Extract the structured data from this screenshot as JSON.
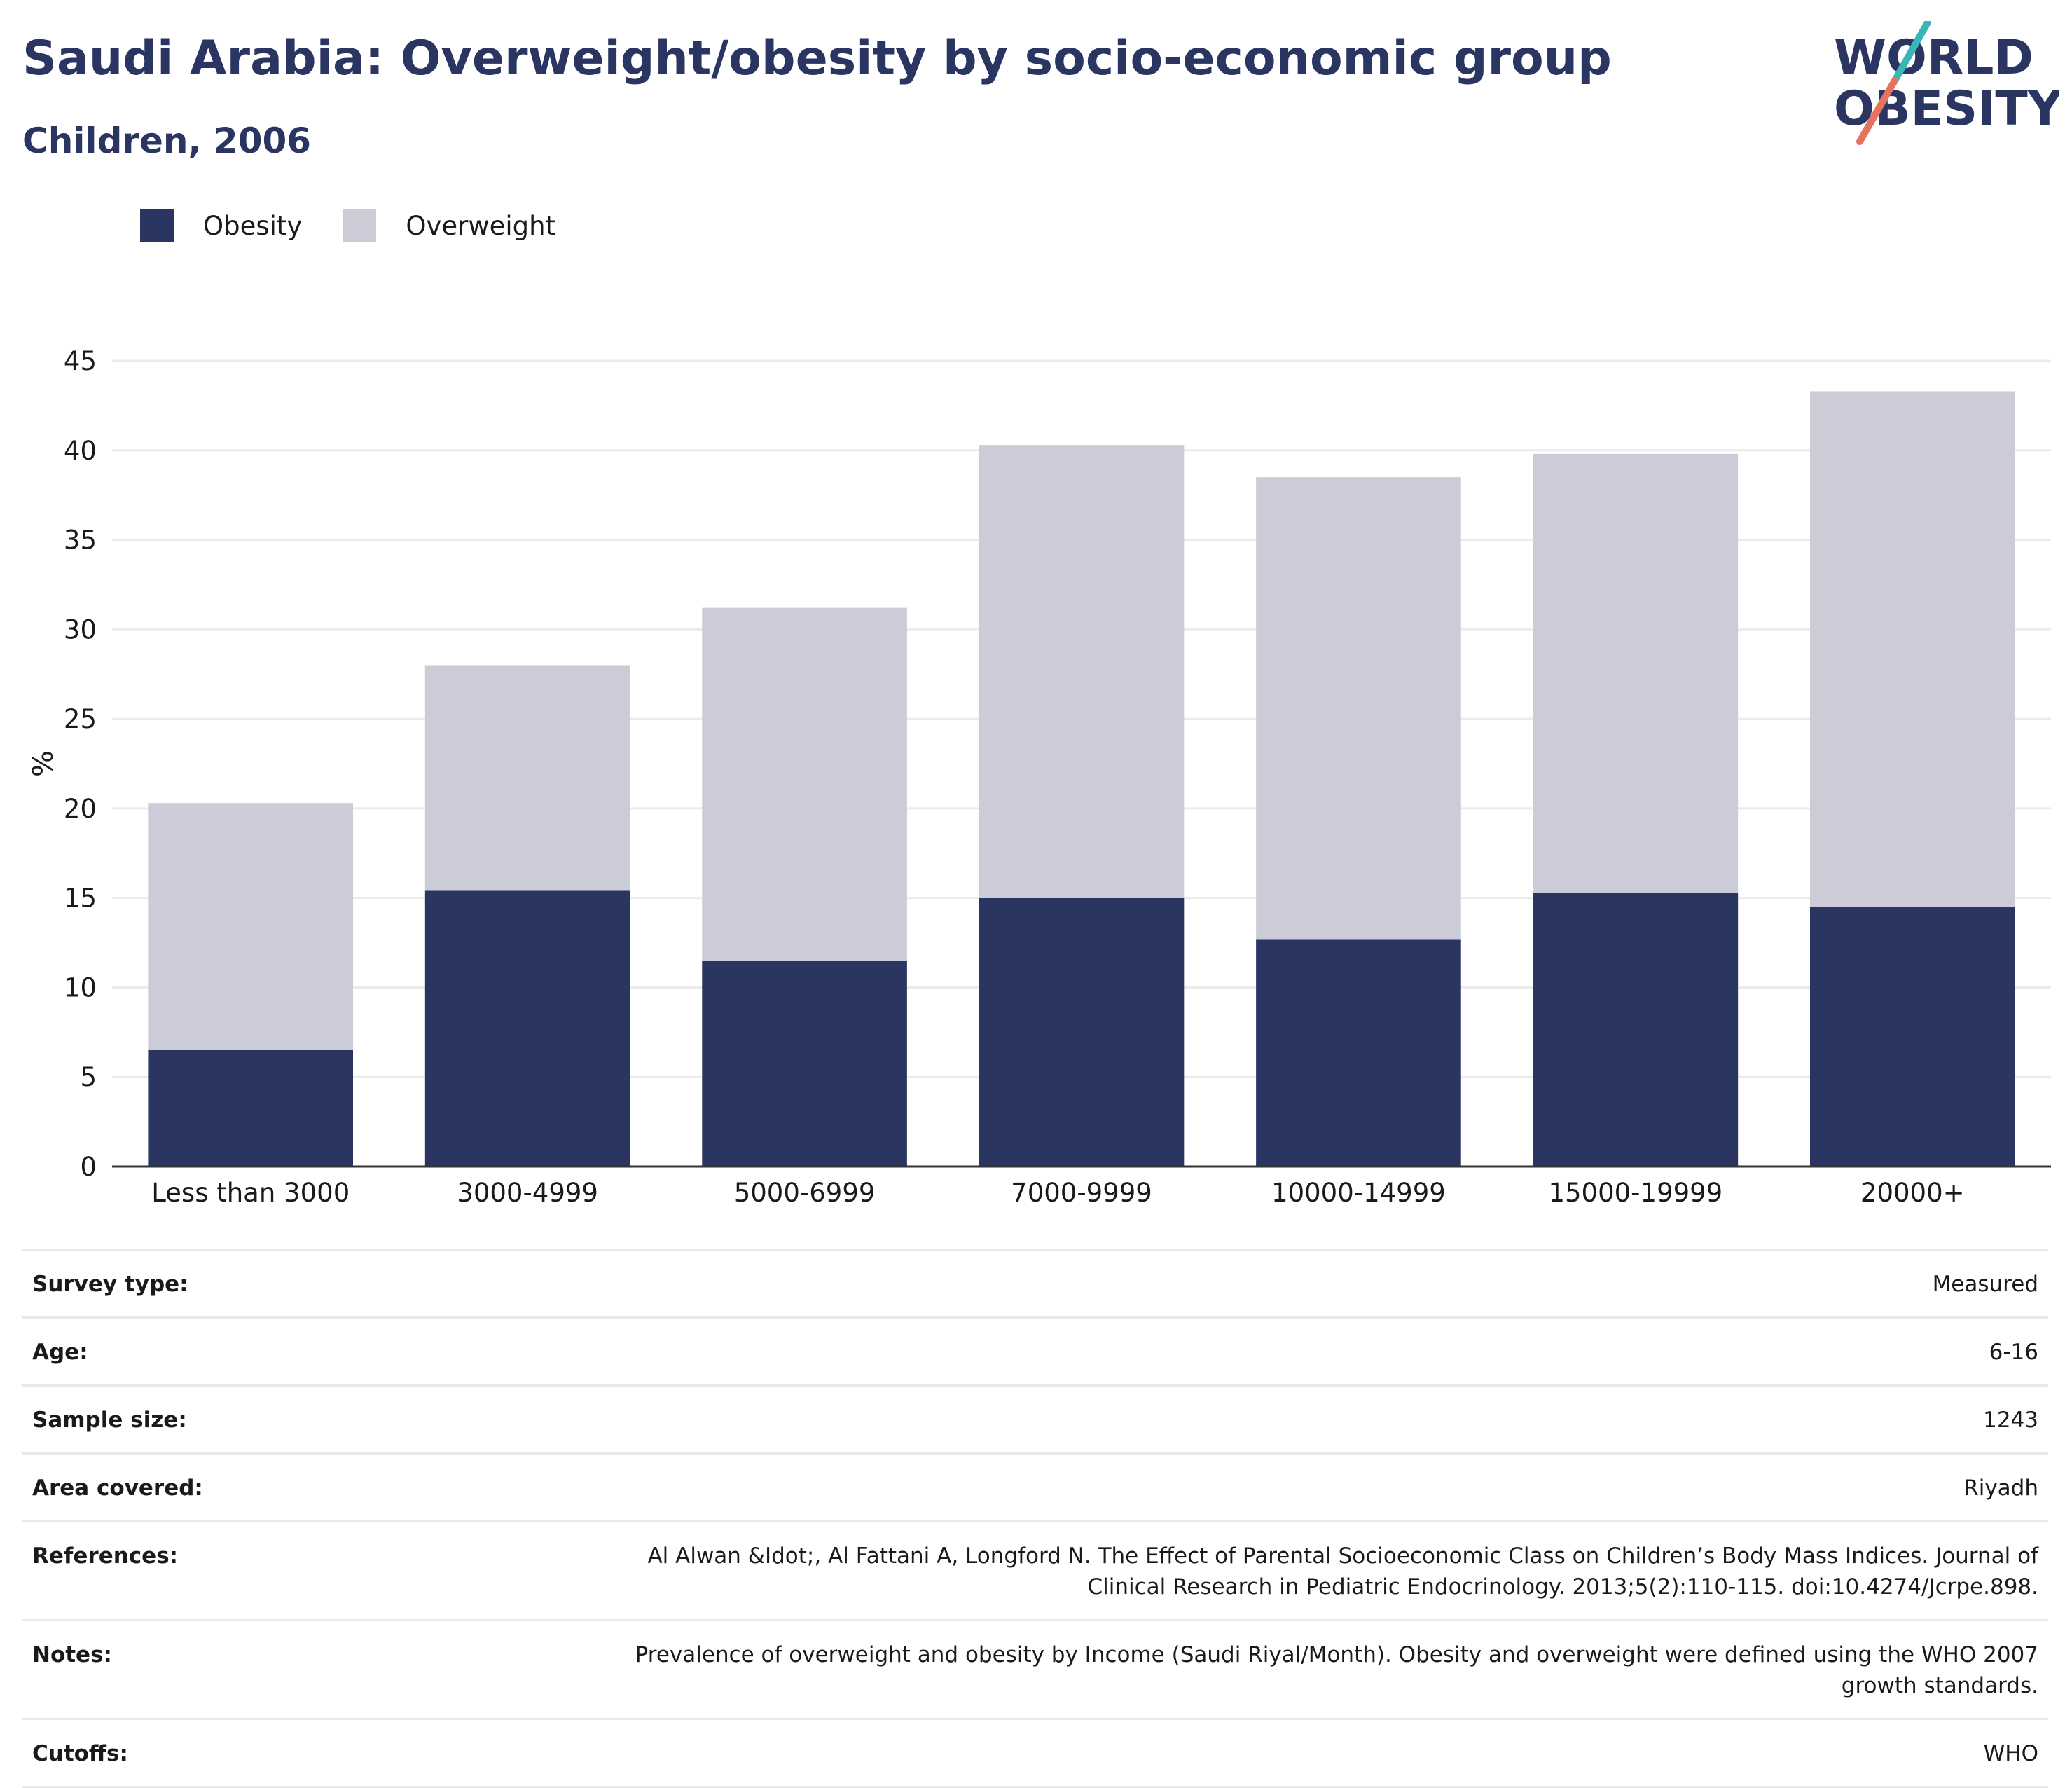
{
  "header": {
    "title": "Saudi Arabia: Overweight/obesity by socio-economic group",
    "subtitle": "Children, 2006"
  },
  "logo": {
    "line1": "WORLD",
    "line2": "OBESITY",
    "accent_teal": "#3bb6b8",
    "accent_coral": "#e4735f",
    "text_color": "#2a3561"
  },
  "colors": {
    "obesity": "#2a3561",
    "overweight": "#cbccd8",
    "title": "#2a3561"
  },
  "chart_data": {
    "type": "bar",
    "stacked": true,
    "categories": [
      "Less than 3000",
      "3000-4999",
      "5000-6999",
      "7000-9999",
      "10000-14999",
      "15000-19999",
      "20000+"
    ],
    "series": [
      {
        "name": "Obesity",
        "values": [
          6.5,
          15.4,
          11.5,
          15.0,
          12.7,
          15.3,
          14.5
        ]
      },
      {
        "name": "Overweight",
        "values": [
          13.8,
          12.6,
          19.7,
          25.3,
          25.8,
          24.5,
          28.8
        ]
      }
    ],
    "ylabel": "%",
    "xlabel": "",
    "ylim": [
      0,
      45
    ],
    "yticks": [
      0,
      5,
      10,
      15,
      20,
      25,
      30,
      35,
      40,
      45
    ],
    "grid": true,
    "legend_position": "top-left"
  },
  "meta": [
    {
      "key": "Survey type:",
      "value": "Measured"
    },
    {
      "key": "Age:",
      "value": "6-16"
    },
    {
      "key": "Sample size:",
      "value": "1243"
    },
    {
      "key": "Area covered:",
      "value": "Riyadh"
    },
    {
      "key": "References:",
      "value": "Al Alwan &Idot;, Al Fattani A, Longford N. The Effect of Parental Socioeconomic Class on Children’s Body Mass Indices. Journal of Clinical Research in Pediatric Endocrinology. 2013;5(2):110-115. doi:10.4274/Jcrpe.898."
    },
    {
      "key": "Notes:",
      "value": "Prevalence of overweight and obesity by Income (Saudi Riyal/Month). Obesity and overweight were defined using the WHO 2007 growth standards."
    },
    {
      "key": "Cutoffs:",
      "value": "WHO"
    }
  ]
}
